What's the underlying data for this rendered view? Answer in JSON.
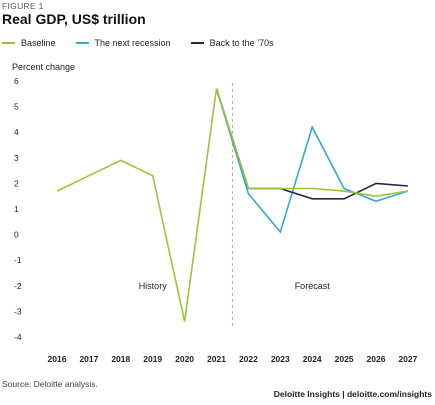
{
  "figure_label": "FIGURE 1",
  "title": "Real GDP, US$ trillion",
  "source": "Source: Deloitte analysis.",
  "brand": "Deloitte Insights | deloitte.com/insights",
  "chart_data": {
    "type": "line",
    "ylabel": "Percent change",
    "x": [
      "2016",
      "2017",
      "2018",
      "2019",
      "2020",
      "2021",
      "2022",
      "2023",
      "2024",
      "2025",
      "2026",
      "2027"
    ],
    "ylim": [
      -4,
      6
    ],
    "yticks": [
      6,
      5,
      4,
      3,
      2,
      1,
      0,
      -1,
      -2,
      -3,
      -4
    ],
    "grid": false,
    "legend": "top-left",
    "history_label": "History",
    "forecast_label": "Forecast",
    "divider_between": [
      "2021",
      "2022"
    ],
    "series": [
      {
        "name": "Baseline",
        "color": "#9ac53b",
        "values": [
          1.7,
          2.3,
          2.9,
          2.3,
          -3.4,
          5.7,
          1.8,
          1.8,
          1.8,
          1.7,
          1.5,
          1.7
        ]
      },
      {
        "name": "The next recession",
        "color": "#33a8d9",
        "values": [
          null,
          null,
          null,
          null,
          null,
          5.7,
          1.6,
          0.1,
          4.2,
          1.8,
          1.3,
          1.7
        ]
      },
      {
        "name": "Back to the ’70s",
        "color": "#1d2a45",
        "values": [
          null,
          null,
          null,
          null,
          null,
          5.7,
          1.8,
          1.8,
          1.4,
          1.4,
          2.0,
          1.9
        ]
      }
    ]
  }
}
